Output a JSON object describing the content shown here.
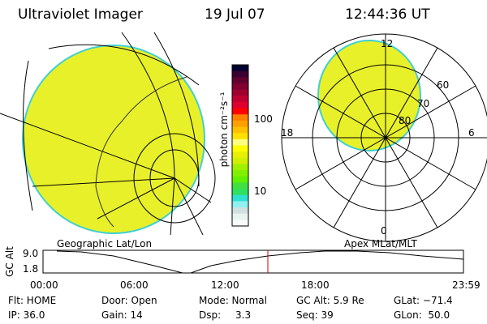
{
  "header": {
    "instrument": "Ultraviolet Imager",
    "date": "19 Jul 07",
    "time": "12:44:36 UT"
  },
  "colorbar": {
    "unit_label": "photon cm⁻²s⁻¹",
    "ticks": [
      "100",
      "10"
    ],
    "colors": [
      "#000030",
      "#3a0030",
      "#600030",
      "#800030",
      "#a00030",
      "#c00030",
      "#e00030",
      "#ff0000",
      "#ff8000",
      "#ffa000",
      "#ffc000",
      "#ffe000",
      "#ffff80",
      "#ffff00",
      "#e8f000",
      "#d0f000",
      "#a0f000",
      "#80f000",
      "#60f000",
      "#40e040",
      "#30e060",
      "#30e0d0",
      "#90f0f0",
      "#d0e0e0",
      "#e8f4f0",
      "#f8fcf8"
    ]
  },
  "left_map": {
    "label": "Geographic Lat/Lon",
    "fill_color": "#e8f02a"
  },
  "right_map": {
    "label": "Apex MLat/MLT",
    "mlt_labels": [
      "12",
      "18",
      "6",
      "0"
    ],
    "lat_labels": [
      "60",
      "70",
      "80"
    ],
    "fill_color": "#e8f02a"
  },
  "altitude_plot": {
    "ylabel": "GC Alt",
    "yticks": [
      "9.0",
      "1.8"
    ],
    "xticks": [
      "00:00",
      "06:00",
      "12:00",
      "18:00",
      "23:59"
    ],
    "current_time_marker": "12:44",
    "marker_color": "#d00000"
  },
  "status": {
    "flt": "Flt: HOME",
    "ip": "IP: 36.0",
    "door": "Door: Open",
    "gain": "Gain: 14",
    "mode": "Mode: Normal",
    "dsp_label": "Dsp:",
    "dsp_value": "3.3",
    "gc_alt": "GC Alt: 5.9 Re",
    "seq": "Seq: 39",
    "glat": "GLat: −71.4",
    "glon": "GLon:  50.0"
  }
}
